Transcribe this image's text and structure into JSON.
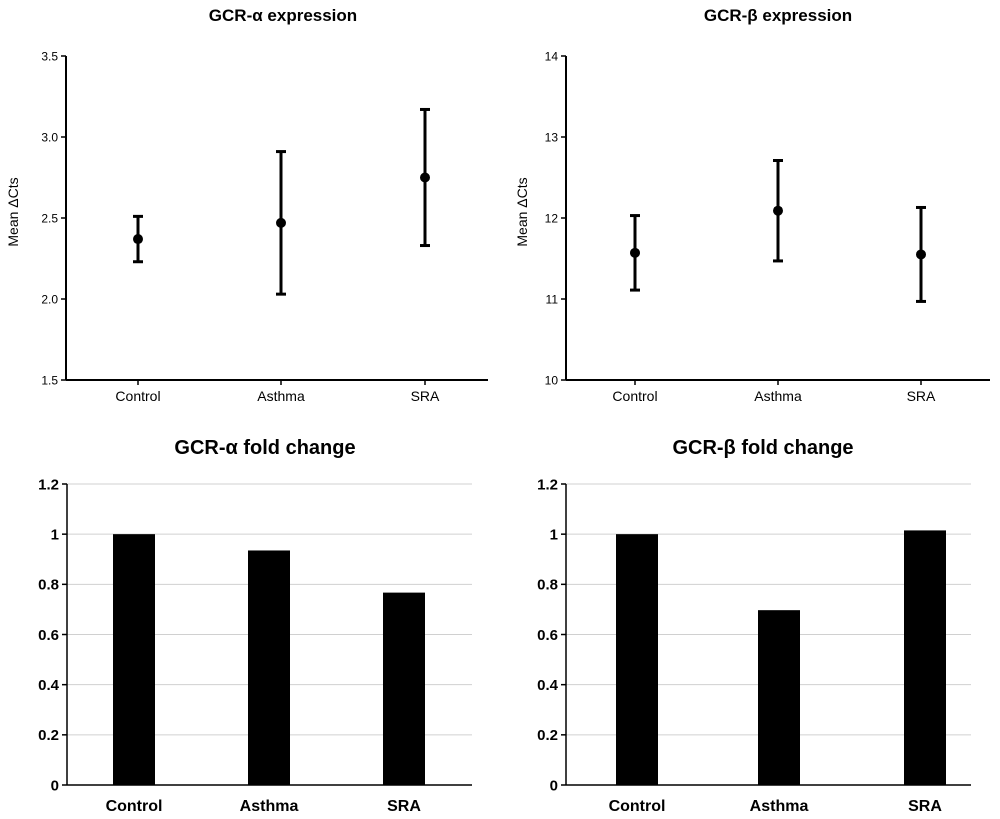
{
  "chart_data": [
    {
      "type": "scatter",
      "title": "GCR-α expression",
      "ylabel": "Mean ΔCts",
      "categories": [
        "Control",
        "Asthma",
        "SRA"
      ],
      "values": [
        2.37,
        2.47,
        2.75
      ],
      "error_low": [
        2.23,
        2.03,
        2.33
      ],
      "error_high": [
        2.51,
        2.91,
        3.17
      ],
      "ylim": [
        1.5,
        3.5
      ],
      "yticks": [
        "1.5",
        "2.0",
        "2.5",
        "3.0",
        "3.5"
      ],
      "grid": false
    },
    {
      "type": "scatter",
      "title": "GCR-β expression",
      "ylabel": "Mean ΔCts",
      "categories": [
        "Control",
        "Asthma",
        "SRA"
      ],
      "values": [
        11.57,
        12.09,
        11.55
      ],
      "error_low": [
        11.11,
        11.47,
        10.97
      ],
      "error_high": [
        12.03,
        12.71,
        12.13
      ],
      "ylim": [
        10,
        14
      ],
      "yticks": [
        "10",
        "11",
        "12",
        "13",
        "14"
      ],
      "grid": false
    },
    {
      "type": "bar",
      "title": "GCR-α fold change",
      "categories": [
        "Control",
        "Asthma",
        "SRA"
      ],
      "values": [
        1.0,
        0.935,
        0.767
      ],
      "ylim": [
        0,
        1.2
      ],
      "yticks": [
        "0",
        "0.2",
        "0.4",
        "0.6",
        "0.8",
        "1",
        "1.2"
      ],
      "grid": true
    },
    {
      "type": "bar",
      "title": "GCR-β fold change",
      "categories": [
        "Control",
        "Asthma",
        "SRA"
      ],
      "values": [
        1.0,
        0.697,
        1.015
      ],
      "ylim": [
        0,
        1.2
      ],
      "yticks": [
        "0",
        "0.2",
        "0.4",
        "0.6",
        "0.8",
        "1",
        "1.2"
      ],
      "grid": true
    }
  ]
}
